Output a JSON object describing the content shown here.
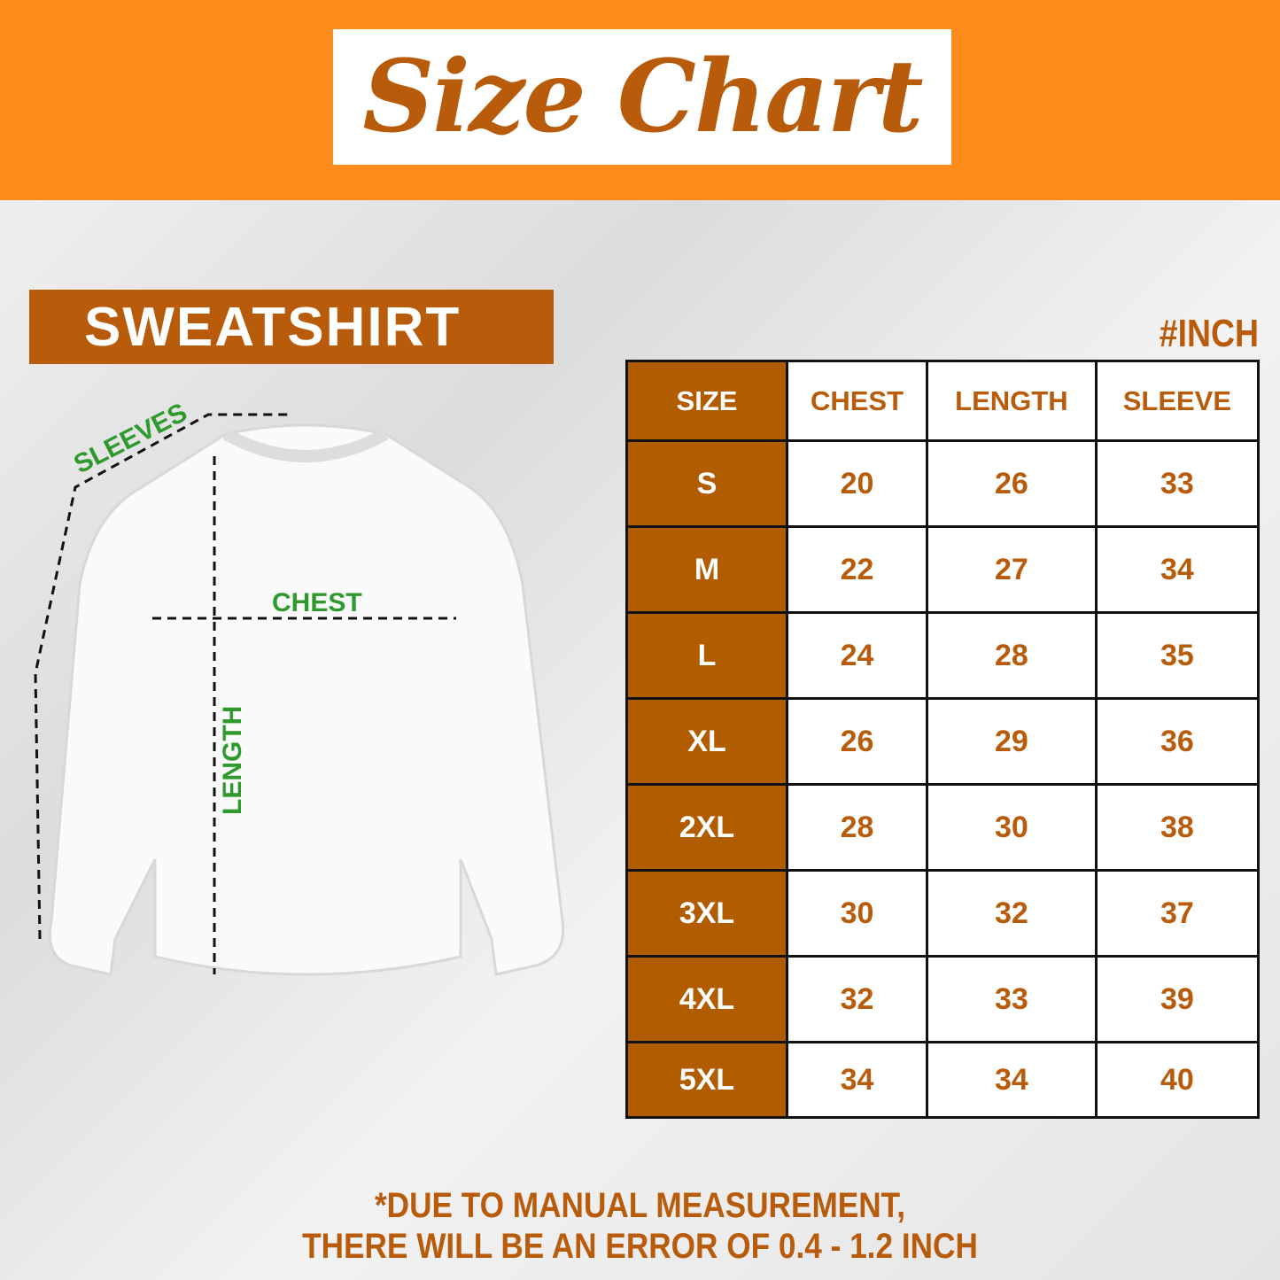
{
  "header": {
    "title": "Size Chart"
  },
  "product": {
    "label": "SWEATSHIRT",
    "unit": "#INCH"
  },
  "diagram": {
    "sleeves": "SLEEVES",
    "chest": "CHEST",
    "length": "LENGTH"
  },
  "colors": {
    "banner": "#fb8c1c",
    "accent": "#b85c0c",
    "measure": "#2e9a2e"
  },
  "table": {
    "headers": [
      "SIZE",
      "CHEST",
      "LENGTH",
      "SLEEVE"
    ],
    "rows": [
      [
        "S",
        "20",
        "26",
        "33"
      ],
      [
        "M",
        "22",
        "27",
        "34"
      ],
      [
        "L",
        "24",
        "28",
        "35"
      ],
      [
        "XL",
        "26",
        "29",
        "36"
      ],
      [
        "2XL",
        "28",
        "30",
        "38"
      ],
      [
        "3XL",
        "30",
        "32",
        "37"
      ],
      [
        "4XL",
        "32",
        "33",
        "39"
      ],
      [
        "5XL",
        "34",
        "34",
        "40"
      ]
    ]
  },
  "note": {
    "line1": "*DUE TO MANUAL MEASUREMENT,",
    "line2": "THERE WILL BE AN ERROR OF 0.4 - 1.2 INCH"
  }
}
